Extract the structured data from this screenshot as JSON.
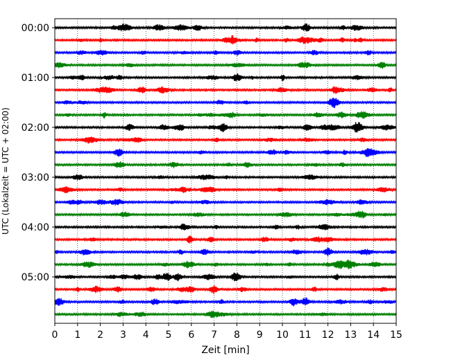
{
  "chart_data": {
    "type": "line",
    "xlabel": "Zeit  [min]",
    "ylabel": "UTC (Lokalzeit = UTC + 02:00)",
    "xlim": [
      0,
      15
    ],
    "xticks": [
      "0",
      "1",
      "2",
      "3",
      "4",
      "5",
      "6",
      "7",
      "8",
      "9",
      "10",
      "11",
      "12",
      "13",
      "14",
      "15"
    ],
    "yticks": [
      "00:00",
      "01:00",
      "02:00",
      "03:00",
      "04:00",
      "05:00"
    ],
    "row_interval_min": 15,
    "rows_per_hour": 4,
    "trace_count": 24,
    "trace_colors": [
      "#000000",
      "#ff0000",
      "#0000ff",
      "#008000"
    ],
    "grid": "vertical dotted lines at each minute",
    "notable_events_min": [
      {
        "row": 4,
        "minute": 8.0
      },
      {
        "row": 8,
        "minute": 7.4
      },
      {
        "row": 8,
        "minute": 13.3
      },
      {
        "row": 10,
        "minute": 2.8
      },
      {
        "row": 10,
        "minute": 13.8
      },
      {
        "row": 18,
        "minute": 12.0
      },
      {
        "row": 20,
        "minute": 4.9
      },
      {
        "row": 22,
        "minute": 10.5
      },
      {
        "row": 22,
        "minute": 11.0
      }
    ]
  }
}
